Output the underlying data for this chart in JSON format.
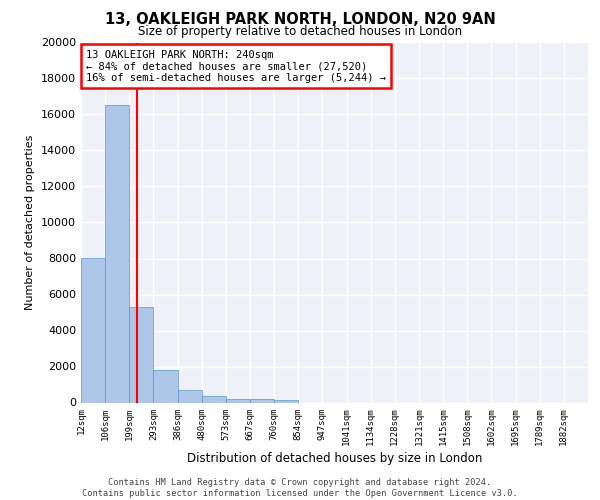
{
  "title_line1": "13, OAKLEIGH PARK NORTH, LONDON, N20 9AN",
  "title_line2": "Size of property relative to detached houses in London",
  "xlabel": "Distribution of detached houses by size in London",
  "ylabel": "Number of detached properties",
  "bin_labels": [
    "12sqm",
    "106sqm",
    "199sqm",
    "293sqm",
    "386sqm",
    "480sqm",
    "573sqm",
    "667sqm",
    "760sqm",
    "854sqm",
    "947sqm",
    "1041sqm",
    "1134sqm",
    "1228sqm",
    "1321sqm",
    "1415sqm",
    "1508sqm",
    "1602sqm",
    "1695sqm",
    "1789sqm",
    "1882sqm"
  ],
  "bar_heights": [
    8050,
    16500,
    5300,
    1800,
    700,
    340,
    200,
    190,
    140,
    0,
    0,
    0,
    0,
    0,
    0,
    0,
    0,
    0,
    0,
    0,
    0
  ],
  "bar_color": "#aec6e8",
  "bar_edge_color": "#5a9ac8",
  "vline_x": 2.33,
  "vline_color": "red",
  "annotation_text": "13 OAKLEIGH PARK NORTH: 240sqm\n← 84% of detached houses are smaller (27,520)\n16% of semi-detached houses are larger (5,244) →",
  "annotation_box_color": "red",
  "ylim": [
    0,
    20000
  ],
  "yticks": [
    0,
    2000,
    4000,
    6000,
    8000,
    10000,
    12000,
    14000,
    16000,
    18000,
    20000
  ],
  "footer_text": "Contains HM Land Registry data © Crown copyright and database right 2024.\nContains public sector information licensed under the Open Government Licence v3.0.",
  "bg_color": "#eef2f8",
  "grid_color": "white"
}
